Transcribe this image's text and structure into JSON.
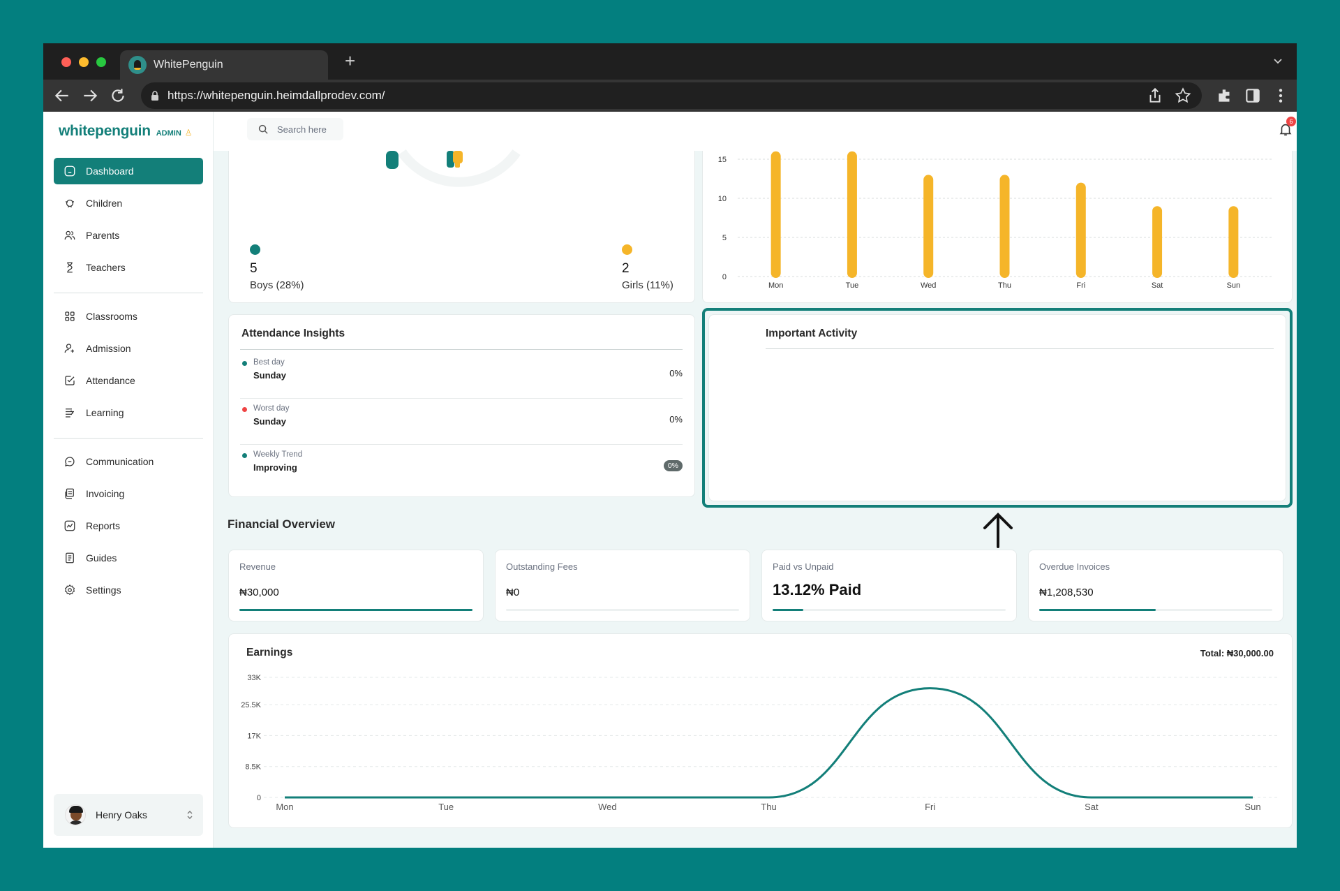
{
  "browser": {
    "tab_title": "WhitePenguin",
    "new_tab": "+",
    "url": "https://whitepenguin.heimdallprodev.com/"
  },
  "brand": {
    "name": "whitepenguin",
    "role": "ADMIN"
  },
  "colors": {
    "primary": "#137f79",
    "accent": "#f5b529",
    "danger": "#ef4444",
    "frame": "#037f7f"
  },
  "sidebar": {
    "items": [
      {
        "label": "Dashboard",
        "icon": "home-icon",
        "active": true
      },
      {
        "label": "Children",
        "icon": "child-icon"
      },
      {
        "label": "Parents",
        "icon": "users-icon"
      },
      {
        "label": "Teachers",
        "icon": "teacher-icon"
      },
      {
        "label": "Classrooms",
        "icon": "grid-icon"
      },
      {
        "label": "Admission",
        "icon": "user-plus-icon"
      },
      {
        "label": "Attendance",
        "icon": "check-square-icon"
      },
      {
        "label": "Learning",
        "icon": "learning-icon"
      },
      {
        "label": "Communication",
        "icon": "chat-icon"
      },
      {
        "label": "Invoicing",
        "icon": "invoice-icon"
      },
      {
        "label": "Reports",
        "icon": "report-icon"
      },
      {
        "label": "Guides",
        "icon": "guide-icon"
      },
      {
        "label": "Settings",
        "icon": "settings-icon"
      }
    ],
    "user": {
      "name": "Henry Oaks"
    }
  },
  "topbar": {
    "search_placeholder": "Search here",
    "notification_count": "6"
  },
  "gender": {
    "boys": {
      "count": "5",
      "label": "Boys (28%)"
    },
    "girls": {
      "count": "2",
      "label": "Girls (11%)"
    }
  },
  "attendance_chart": {
    "y_ticks": [
      "15",
      "10",
      "5",
      "0"
    ]
  },
  "insights": {
    "title": "Attendance Insights",
    "rows": [
      {
        "caption": "Best day",
        "value": "Sunday",
        "pct": "0%"
      },
      {
        "caption": "Worst day",
        "value": "Sunday",
        "pct": "0%"
      },
      {
        "caption": "Weekly Trend",
        "value": "Improving",
        "pct": "0%"
      }
    ]
  },
  "activity": {
    "title": "Important Activity"
  },
  "financial": {
    "title": "Financial Overview",
    "cards": [
      {
        "caption": "Revenue",
        "value": "₦30,000",
        "progress": 1.0
      },
      {
        "caption": "Outstanding Fees",
        "value": "₦0",
        "progress": 0.0
      },
      {
        "caption": "Paid vs Unpaid",
        "value": "13.12% Paid",
        "progress": 0.1312
      },
      {
        "caption": "Overdue Invoices",
        "value": "₦1,208,530",
        "progress": 0.5
      }
    ]
  },
  "earnings": {
    "title": "Earnings",
    "total": "Total: ₦30,000.00"
  },
  "chart_data": [
    {
      "type": "bar",
      "categories": [
        "Mon",
        "Tue",
        "Wed",
        "Thu",
        "Fri",
        "Sat",
        "Sun"
      ],
      "values": [
        16,
        16,
        13,
        13,
        12,
        9,
        9
      ],
      "ylim": [
        0,
        15
      ],
      "yticks": [
        0,
        5,
        10,
        15
      ],
      "grid": true,
      "color": "#f5b529"
    },
    {
      "type": "area",
      "title": "Earnings",
      "categories": [
        "Mon",
        "Tue",
        "Wed",
        "Thu",
        "Fri",
        "Sat",
        "Sun"
      ],
      "values": [
        0,
        0,
        0,
        0,
        30000,
        0,
        0
      ],
      "ylim": [
        0,
        33000
      ],
      "yticks": [
        "0",
        "8.5K",
        "17K",
        "25.5K",
        "33K"
      ],
      "ytick_values": [
        0,
        8500,
        17000,
        25500,
        33000
      ],
      "grid": true,
      "color": "#137f79"
    }
  ]
}
